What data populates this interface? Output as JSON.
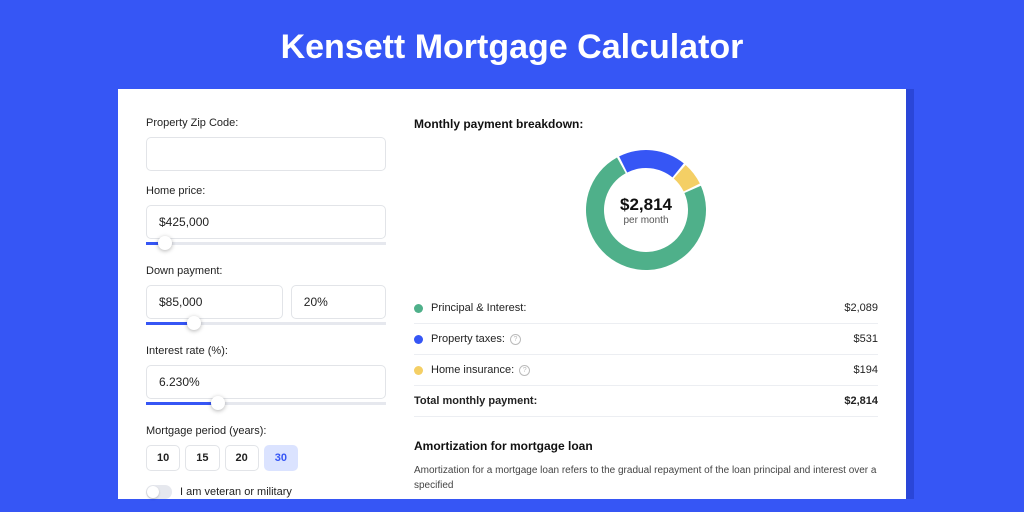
{
  "page": {
    "title": "Kensett Mortgage Calculator",
    "background_color": "#3656f5",
    "card_background": "#ffffff"
  },
  "form": {
    "zip": {
      "label": "Property Zip Code:",
      "value": ""
    },
    "home_price": {
      "label": "Home price:",
      "value": "$425,000",
      "slider_pct": 8
    },
    "down_payment": {
      "label": "Down payment:",
      "amount": "$85,000",
      "percent": "20%",
      "slider_pct": 20
    },
    "interest_rate": {
      "label": "Interest rate (%):",
      "value": "6.230%",
      "slider_pct": 30
    },
    "period": {
      "label": "Mortgage period (years):",
      "options": [
        "10",
        "15",
        "20",
        "30"
      ],
      "selected": "30"
    },
    "veteran": {
      "label": "I am veteran or military",
      "checked": false
    }
  },
  "breakdown": {
    "heading": "Monthly payment breakdown:",
    "donut": {
      "amount": "$2,814",
      "sub": "per month",
      "slices": [
        {
          "key": "principal_interest",
          "value": 2089,
          "color": "#4fb08a"
        },
        {
          "key": "property_taxes",
          "value": 531,
          "color": "#3656f5"
        },
        {
          "key": "home_insurance",
          "value": 194,
          "color": "#f4cf65"
        }
      ],
      "thickness": 18,
      "start_angle_deg": -25
    },
    "items": [
      {
        "label": "Principal & Interest:",
        "value": "$2,089",
        "color": "#4fb08a",
        "info": false
      },
      {
        "label": "Property taxes:",
        "value": "$531",
        "color": "#3656f5",
        "info": true
      },
      {
        "label": "Home insurance:",
        "value": "$194",
        "color": "#f4cf65",
        "info": true
      }
    ],
    "total": {
      "label": "Total monthly payment:",
      "value": "$2,814"
    }
  },
  "amortization": {
    "heading": "Amortization for mortgage loan",
    "text": "Amortization for a mortgage loan refers to the gradual repayment of the loan principal and interest over a specified"
  }
}
